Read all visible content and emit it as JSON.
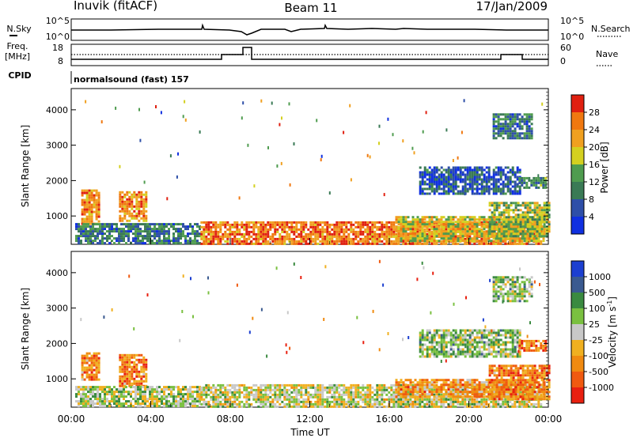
{
  "header": {
    "station": "Inuvik (fitACF)",
    "beam": "Beam 11",
    "date": "17/Jan/2009"
  },
  "nsky_panel": {
    "left_label": "N.Sky",
    "left_ticks": [
      "10^5",
      "10^0"
    ],
    "right_label": "N.Search",
    "right_ticks": [
      "10^5",
      "10^0"
    ]
  },
  "freq_panel": {
    "left_label_line1": "Freq.",
    "left_label_line2": "[MHz]",
    "left_ticks": [
      "18",
      "8"
    ],
    "right_label": "Nave",
    "right_ticks": [
      "60",
      "0"
    ],
    "cpid_label": "CPID",
    "cpid_text": "normalsound (fast) 157"
  },
  "colors": {
    "power_scale": [
      "#1030e0",
      "#2e4fa8",
      "#3a7a55",
      "#4f9c4f",
      "#d4d020",
      "#f0a020",
      "#f07810",
      "#e02010"
    ],
    "velocity_scale": [
      "#e82010",
      "#f05a10",
      "#f08a10",
      "#f0b020",
      "#c8c8c8",
      "#7ac040",
      "#3a8a40",
      "#3a5a90",
      "#1c3fd0"
    ]
  },
  "chart_data": [
    {
      "type": "heatmap",
      "name": "power",
      "ylabel": "Slant Range [km]",
      "yticks": [
        "1000",
        "2000",
        "3000",
        "4000"
      ],
      "ylim": [
        200,
        4600
      ],
      "xlim": [
        0,
        24
      ],
      "colorbar": {
        "label": "Power [dB]",
        "ticks": [
          "4",
          "8",
          "12",
          "16",
          "20",
          "24",
          "28"
        ],
        "range": [
          0,
          32
        ]
      },
      "regions": [
        {
          "t0": 0.5,
          "t1": 1.4,
          "r0": 800,
          "r1": 1750,
          "level": 0.75
        },
        {
          "t0": 2.4,
          "t1": 3.8,
          "r0": 850,
          "r1": 1700,
          "level": 0.75
        },
        {
          "t0": 0.2,
          "t1": 6.5,
          "r0": 200,
          "r1": 800,
          "level": 0.3
        },
        {
          "t0": 6.5,
          "t1": 23.6,
          "r0": 200,
          "r1": 850,
          "level": 0.8
        },
        {
          "t0": 16.3,
          "t1": 23.8,
          "r0": 300,
          "r1": 1000,
          "level": 0.6
        },
        {
          "t0": 21.0,
          "t1": 24.0,
          "r0": 400,
          "r1": 1400,
          "level": 0.5
        },
        {
          "t0": 17.5,
          "t1": 22.6,
          "r0": 1600,
          "r1": 2400,
          "level": 0.2
        },
        {
          "t0": 22.5,
          "t1": 23.9,
          "r0": 1800,
          "r1": 2100,
          "level": 0.35
        },
        {
          "t0": 21.2,
          "t1": 23.2,
          "r0": 3200,
          "r1": 3900,
          "level": 0.3
        }
      ]
    },
    {
      "type": "heatmap",
      "name": "velocity",
      "ylabel": "Slant Range [km]",
      "yticks": [
        "1000",
        "2000",
        "3000",
        "4000"
      ],
      "ylim": [
        200,
        4600
      ],
      "xlim": [
        0,
        24
      ],
      "xticks": [
        "00:00",
        "04:00",
        "08:00",
        "12:00",
        "16:00",
        "20:00",
        "00:00"
      ],
      "xlabel": "Time UT",
      "colorbar": {
        "label": "Velocity [m s^-1]",
        "ticks": [
          "-1000",
          "-500",
          "-100",
          "-25",
          "25",
          "100",
          "500",
          "1000"
        ]
      },
      "regions": [
        {
          "t0": 0.5,
          "t1": 1.4,
          "r0": 950,
          "r1": 1750,
          "level": 0.25
        },
        {
          "t0": 2.4,
          "t1": 3.8,
          "r0": 800,
          "r1": 1700,
          "level": 0.25
        },
        {
          "t0": 0.2,
          "t1": 6.5,
          "r0": 200,
          "r1": 800,
          "level": 0.55
        },
        {
          "t0": 6.5,
          "t1": 23.6,
          "r0": 200,
          "r1": 850,
          "level": 0.5
        },
        {
          "t0": 16.3,
          "t1": 23.8,
          "r0": 500,
          "r1": 1000,
          "level": 0.3
        },
        {
          "t0": 21.0,
          "t1": 24.0,
          "r0": 400,
          "r1": 1400,
          "level": 0.25
        },
        {
          "t0": 17.5,
          "t1": 22.6,
          "r0": 1600,
          "r1": 2400,
          "level": 0.6
        },
        {
          "t0": 22.5,
          "t1": 23.9,
          "r0": 1800,
          "r1": 2100,
          "level": 0.2
        },
        {
          "t0": 21.2,
          "t1": 23.2,
          "r0": 3200,
          "r1": 3900,
          "level": 0.6
        }
      ]
    }
  ]
}
